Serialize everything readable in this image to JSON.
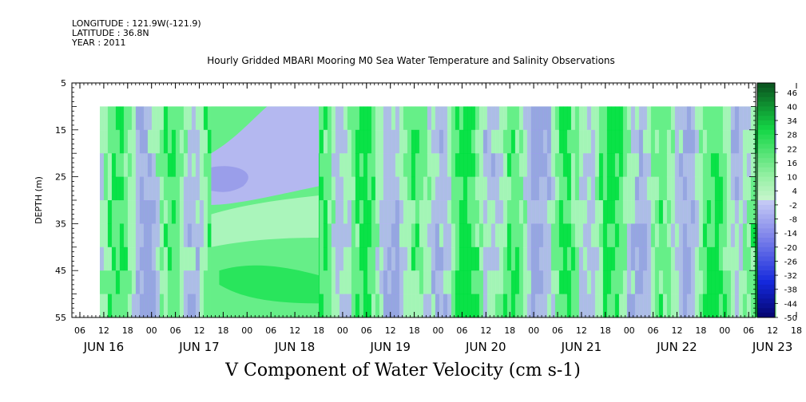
{
  "header": {
    "longitude": "LONGITUDE : 121.9W(-121.9)",
    "latitude": "LATITUDE : 36.8N",
    "year": "YEAR : 2011",
    "title": "Hourly Gridded MBARI Mooring M0 Sea Water Temperature and Salinity Observations"
  },
  "chart_data": {
    "type": "heatmap",
    "title": "Hourly Gridded MBARI Mooring M0 Sea Water Temperature and Salinity Observations",
    "variable_label": "V Component of Water Velocity (cm s-1)",
    "ylabel": "DEPTH (m)",
    "ylim": [
      5,
      55
    ],
    "y_inverted": true,
    "y_ticks": [
      "5",
      "15",
      "25",
      "35",
      "45",
      "55"
    ],
    "x_hour_ticks": [
      "06",
      "12",
      "18",
      "00",
      "06",
      "12",
      "18",
      "00",
      "06",
      "12",
      "18",
      "00",
      "06",
      "12",
      "18",
      "00",
      "06",
      "12",
      "18",
      "00",
      "06",
      "12",
      "18",
      "00",
      "06",
      "12",
      "18",
      "00",
      "06",
      "12",
      "18",
      "00"
    ],
    "x_day_labels": [
      "JUN 16",
      "JUN 17",
      "JUN 18",
      "JUN 19",
      "JUN 20",
      "JUN 21",
      "JUN 22",
      "JUN 23"
    ],
    "colorbar_labels": [
      "46",
      "40",
      "34",
      "28",
      "22",
      "16",
      "10",
      "4",
      "-2",
      "-8",
      "-14",
      "-20",
      "-26",
      "-32",
      "-38",
      "-44",
      "-50"
    ],
    "colorbar_min": -50,
    "colorbar_max": 50,
    "data_depth_range": [
      10,
      55
    ],
    "data_time_start": "JUN 16 11:00",
    "data_time_end": "JUN 23 13:00",
    "colors": {
      "strong_positive": "#00e040",
      "positive": "#66ee88",
      "weak_positive": "#aaf5bb",
      "weak_negative": "#b4b8f0",
      "negative": "#9a9eea"
    }
  },
  "footer": {
    "variable_label": "V Component of Water Velocity (cm s-1)"
  }
}
